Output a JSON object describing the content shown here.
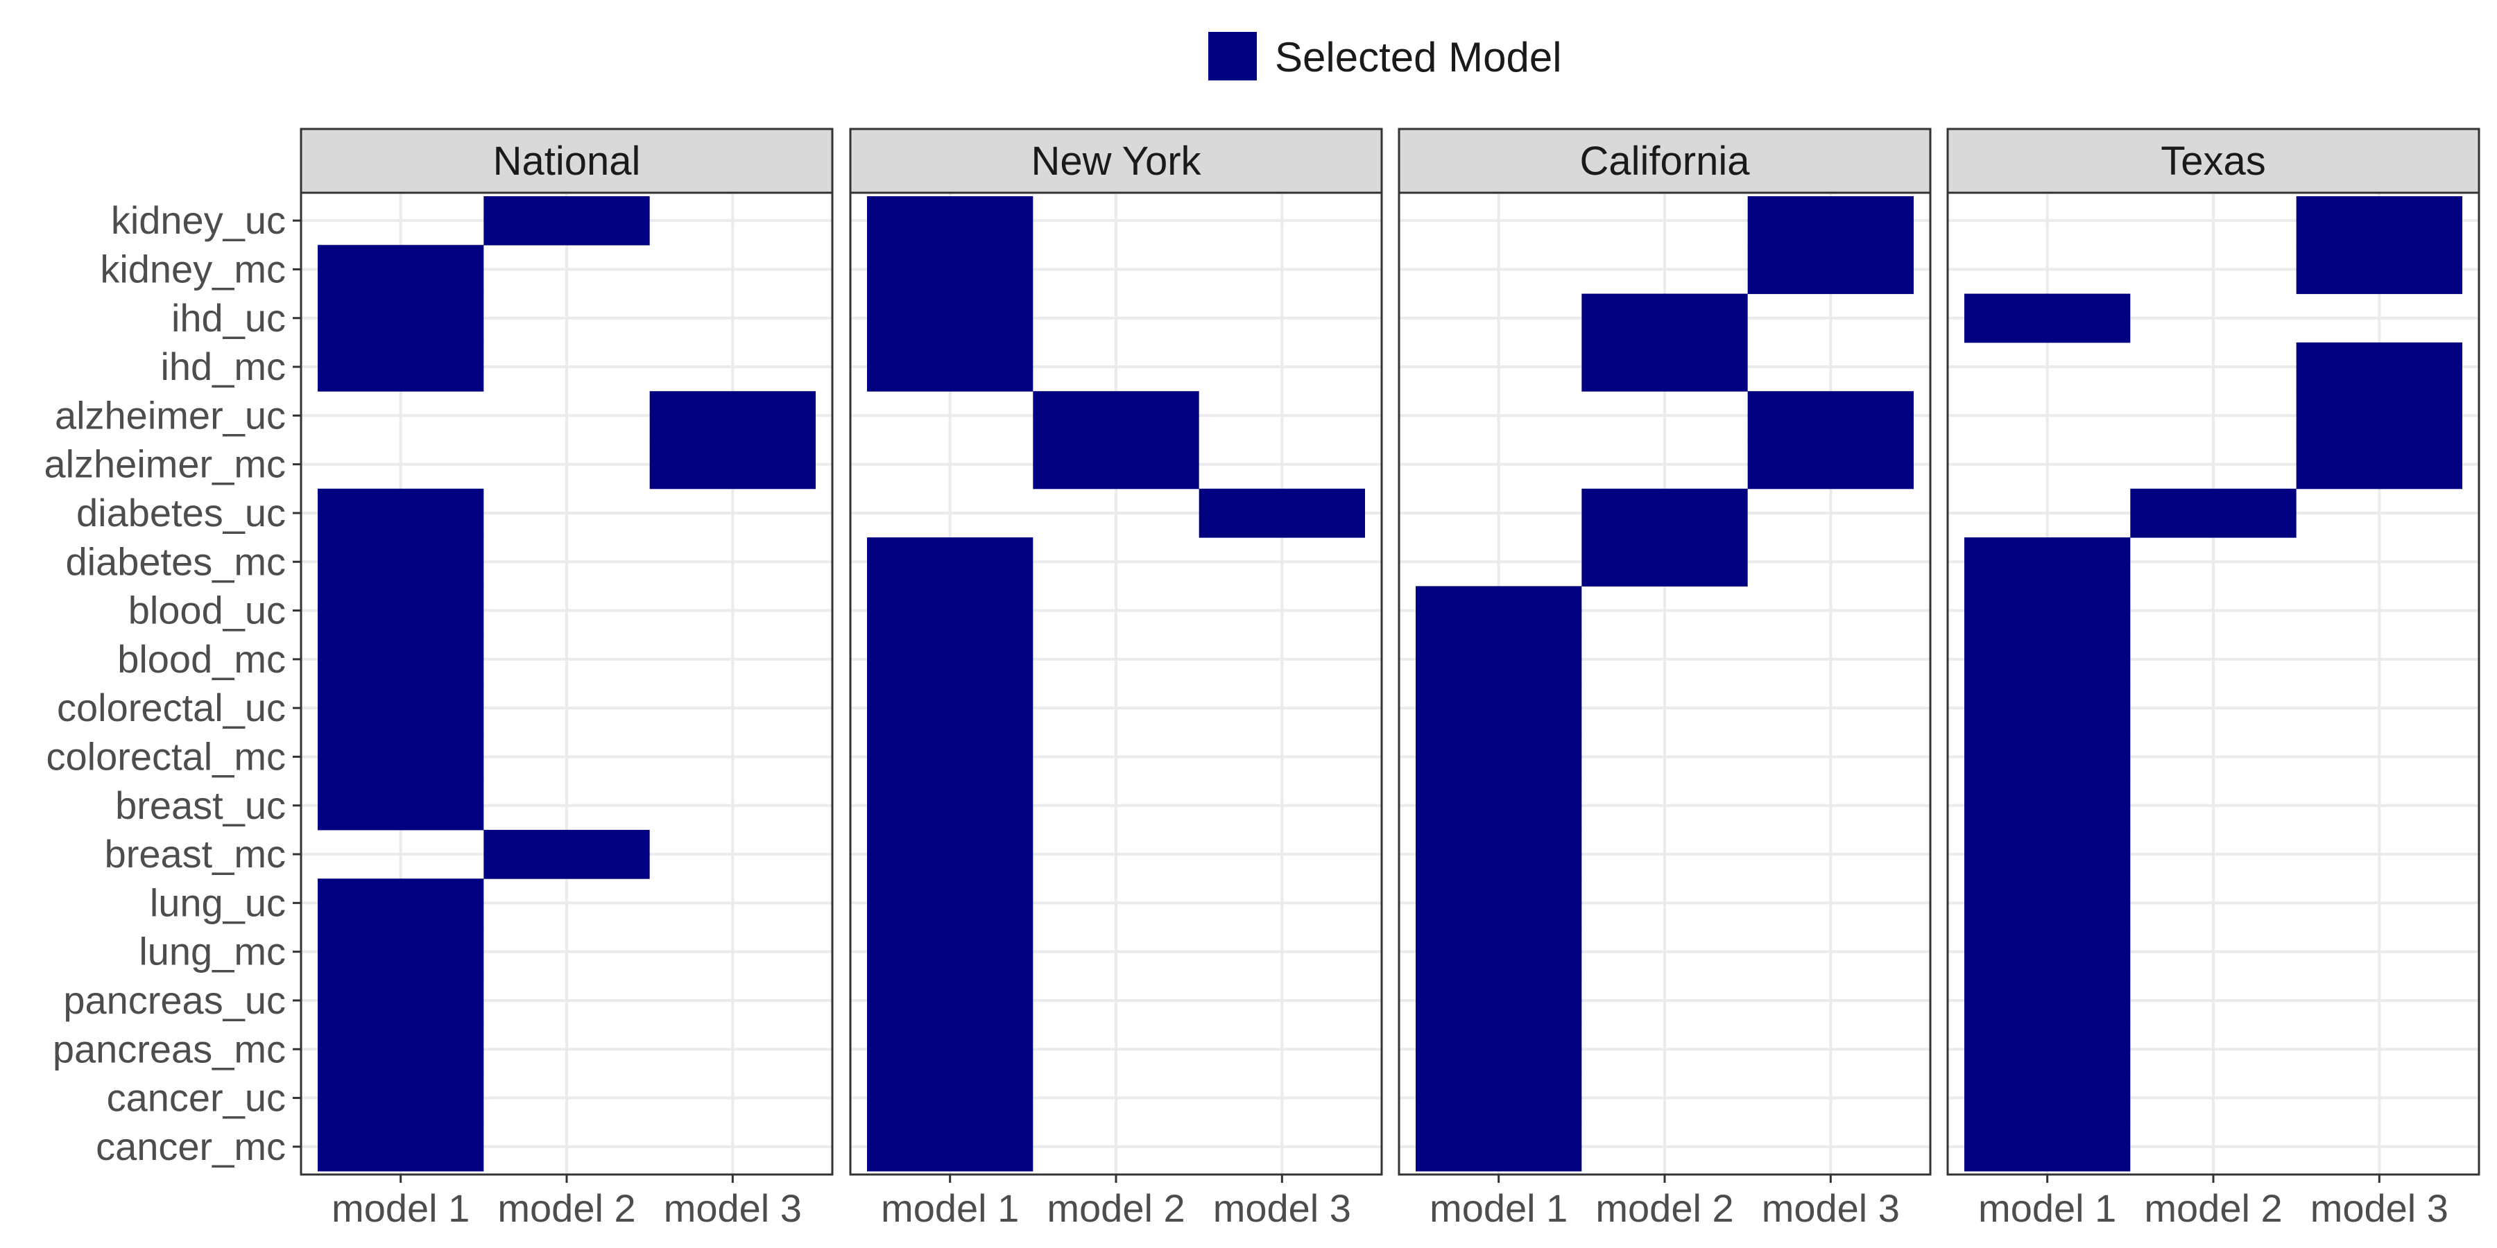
{
  "chart_data": {
    "type": "heatmap",
    "legend": {
      "label": "Selected Model",
      "position": "top"
    },
    "fill_color": "#000080",
    "x_categories": [
      "model 1",
      "model 2",
      "model 3"
    ],
    "y_categories": [
      "kidney_uc",
      "kidney_mc",
      "ihd_uc",
      "ihd_mc",
      "alzheimer_uc",
      "alzheimer_mc",
      "diabetes_uc",
      "diabetes_mc",
      "blood_uc",
      "blood_mc",
      "colorectal_uc",
      "colorectal_mc",
      "breast_uc",
      "breast_mc",
      "lung_uc",
      "lung_mc",
      "pancreas_uc",
      "pancreas_mc",
      "cancer_uc",
      "cancer_mc"
    ],
    "panels": [
      {
        "name": "National",
        "selected": {
          "kidney_uc": "model 2",
          "kidney_mc": "model 1",
          "ihd_uc": "model 1",
          "ihd_mc": "model 1",
          "alzheimer_uc": "model 3",
          "alzheimer_mc": "model 3",
          "diabetes_uc": "model 1",
          "diabetes_mc": "model 1",
          "blood_uc": "model 1",
          "blood_mc": "model 1",
          "colorectal_uc": "model 1",
          "colorectal_mc": "model 1",
          "breast_uc": "model 1",
          "breast_mc": "model 2",
          "lung_uc": "model 1",
          "lung_mc": "model 1",
          "pancreas_uc": "model 1",
          "pancreas_mc": "model 1",
          "cancer_uc": "model 1",
          "cancer_mc": "model 1"
        }
      },
      {
        "name": "New York",
        "selected": {
          "kidney_uc": "model 1",
          "kidney_mc": "model 1",
          "ihd_uc": "model 1",
          "ihd_mc": "model 1",
          "alzheimer_uc": "model 2",
          "alzheimer_mc": "model 2",
          "diabetes_uc": "model 3",
          "diabetes_mc": "model 1",
          "blood_uc": "model 1",
          "blood_mc": "model 1",
          "colorectal_uc": "model 1",
          "colorectal_mc": "model 1",
          "breast_uc": "model 1",
          "breast_mc": "model 1",
          "lung_uc": "model 1",
          "lung_mc": "model 1",
          "pancreas_uc": "model 1",
          "pancreas_mc": "model 1",
          "cancer_uc": "model 1",
          "cancer_mc": "model 1"
        }
      },
      {
        "name": "California",
        "selected": {
          "kidney_uc": "model 3",
          "kidney_mc": "model 3",
          "ihd_uc": "model 2",
          "ihd_mc": "model 2",
          "alzheimer_uc": "model 3",
          "alzheimer_mc": "model 3",
          "diabetes_uc": "model 2",
          "diabetes_mc": "model 2",
          "blood_uc": "model 1",
          "blood_mc": "model 1",
          "colorectal_uc": "model 1",
          "colorectal_mc": "model 1",
          "breast_uc": "model 1",
          "breast_mc": "model 1",
          "lung_uc": "model 1",
          "lung_mc": "model 1",
          "pancreas_uc": "model 1",
          "pancreas_mc": "model 1",
          "cancer_uc": "model 1",
          "cancer_mc": "model 1"
        }
      },
      {
        "name": "Texas",
        "selected": {
          "kidney_uc": "model 3",
          "kidney_mc": "model 3",
          "ihd_uc": "model 1",
          "ihd_mc": "model 3",
          "alzheimer_uc": "model 3",
          "alzheimer_mc": "model 3",
          "diabetes_uc": "model 2",
          "diabetes_mc": "model 1",
          "blood_uc": "model 1",
          "blood_mc": "model 1",
          "colorectal_uc": "model 1",
          "colorectal_mc": "model 1",
          "breast_uc": "model 1",
          "breast_mc": "model 1",
          "lung_uc": "model 1",
          "lung_mc": "model 1",
          "pancreas_uc": "model 1",
          "pancreas_mc": "model 1",
          "cancer_uc": "model 1",
          "cancer_mc": "model 1"
        }
      }
    ],
    "grid": true
  }
}
